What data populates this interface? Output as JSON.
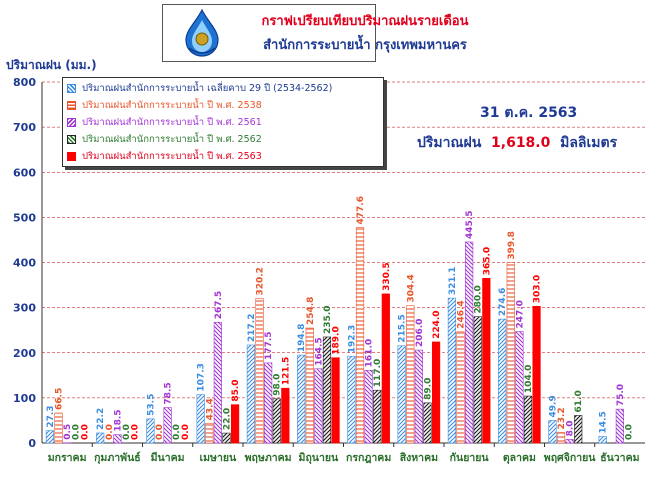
{
  "header": {
    "title_line1": "กราฟเปรียบเทียบปริมาณฝนรายเดือน",
    "title_line2": "สำนักการระบายน้ำ กรุงเทพมหานคร",
    "logo_icon": "raindrop-emblem-icon"
  },
  "info": {
    "date": "31 ต.ค. 2563",
    "rain_label": "ปริมาณฝน",
    "rain_value": "1,618.0",
    "rain_unit": "มิลลิเมตร"
  },
  "colors": {
    "avg": "#3a8de0",
    "y2538": "#e8552a",
    "y2561": "#a335d6",
    "y2562": "#2e7d32",
    "y2563": "#ff0000",
    "grid": "#c00000",
    "axis_text": "#1f3a93",
    "month_text": "#2a6e2a"
  },
  "chart_data": {
    "type": "bar",
    "ylabel": "ปริมาณฝน (มม.)",
    "ylim": [
      0,
      800
    ],
    "yticks": [
      0,
      100,
      200,
      300,
      400,
      500,
      600,
      700,
      800
    ],
    "grid": true,
    "legend_position": "top-left",
    "categories": [
      "มกราคม",
      "กุมภาพันธ์",
      "มีนาคม",
      "เมษายน",
      "พฤษภาคม",
      "มิถุนายน",
      "กรกฎาคม",
      "สิงหาคม",
      "กันยายน",
      "ตุลาคม",
      "พฤศจิกายน",
      "ธันวาคม"
    ],
    "series": [
      {
        "name": "ปริมาณฝนสำนักการระบายน้ำ เฉลี่ยคาบ 29 ปี (2534-2562)",
        "key": "avg",
        "pattern": "hatch-right",
        "values": [
          27.3,
          22.2,
          53.5,
          107.3,
          217.2,
          194.8,
          192.3,
          215.5,
          321.1,
          274.6,
          49.9,
          14.5
        ]
      },
      {
        "name": "ปริมาณฝนสำนักการระบายน้ำ ปี พ.ศ. 2538",
        "key": "y2538",
        "pattern": "hatch-horizontal",
        "values": [
          66.5,
          0.0,
          0.0,
          43.4,
          320.2,
          254.8,
          477.6,
          304.4,
          246.4,
          399.8,
          23.2,
          null
        ]
      },
      {
        "name": "ปริมาณฝนสำนักการระบายน้ำ ปี พ.ศ. 2561",
        "key": "y2561",
        "pattern": "hatch-left",
        "values": [
          0.5,
          18.5,
          78.5,
          267.5,
          177.5,
          164.5,
          161.0,
          206.0,
          445.5,
          247.0,
          8.0,
          75.0
        ]
      },
      {
        "name": "ปริมาณฝนสำนักการระบายน้ำ ปี พ.ศ. 2562",
        "key": "y2562",
        "pattern": "hatch-cross",
        "values": [
          0.0,
          0.0,
          0.0,
          22.0,
          98.0,
          235.0,
          117.0,
          89.0,
          280.0,
          104.0,
          61.0,
          0.0
        ]
      },
      {
        "name": "ปริมาณฝนสำนักการระบายน้ำ ปี พ.ศ. 2563",
        "key": "y2563",
        "pattern": "solid",
        "values": [
          0.0,
          0.0,
          0.0,
          85.0,
          121.5,
          189.0,
          330.5,
          224.0,
          365.0,
          303.0,
          null,
          null
        ]
      }
    ],
    "value_labels": [
      [
        "27.3",
        "22.2",
        "53.5",
        "107.3",
        "217.2",
        "194.8",
        "192.3",
        "215.5",
        "321.1",
        "274.6",
        "49.9",
        "14.5"
      ],
      [
        "66.5",
        "0.0",
        "0.0",
        "43.4",
        "320.2",
        "254.8",
        "477.6",
        "304.4",
        "246.4",
        "399.8",
        "23.2",
        ""
      ],
      [
        "0.5",
        "18.5",
        "78.5",
        "267.5",
        "177.5",
        "164.5",
        "161.0",
        "206.0",
        "445.5",
        "247.0",
        "8.0",
        "75.0"
      ],
      [
        "0.0",
        "0.0",
        "0.0",
        "22.0",
        "98.0",
        "235.0",
        "117.0",
        "89.0",
        "280.0",
        "104.0",
        "61.0",
        "0.0"
      ],
      [
        "0.0",
        "0.0",
        "0.0",
        "85.0",
        "121.5",
        "189.0",
        "330.5",
        "224.0",
        "365.0",
        "303.0",
        "",
        ""
      ]
    ]
  }
}
